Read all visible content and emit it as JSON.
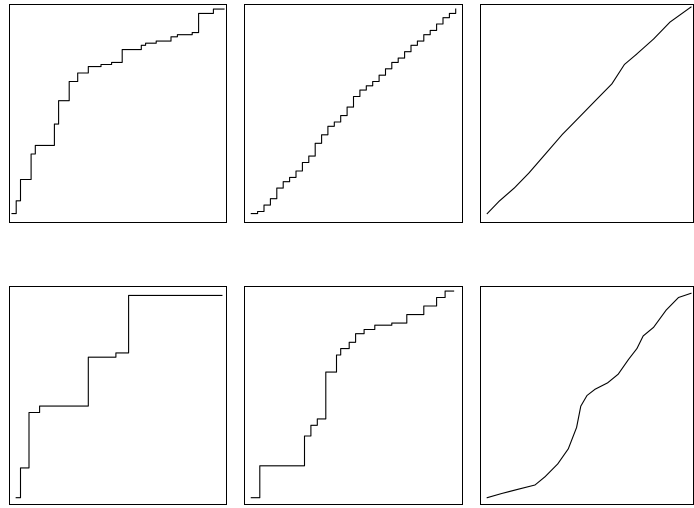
{
  "chart_data": [
    {
      "type": "line",
      "step": true,
      "axes_visible": false,
      "grid": false,
      "xlim": [
        0,
        1
      ],
      "ylim": [
        0,
        1
      ],
      "x": [
        0.0,
        0.02,
        0.02,
        0.04,
        0.04,
        0.09,
        0.09,
        0.11,
        0.11,
        0.2,
        0.2,
        0.22,
        0.22,
        0.27,
        0.27,
        0.31,
        0.31,
        0.36,
        0.36,
        0.42,
        0.42,
        0.47,
        0.47,
        0.51,
        0.51,
        0.52,
        0.52,
        0.55,
        0.55,
        0.61,
        0.61,
        0.63,
        0.63,
        0.68,
        0.68,
        0.75,
        0.75,
        0.78,
        0.78,
        0.85,
        0.85,
        0.88,
        0.88,
        0.95,
        0.95,
        1.0
      ],
      "y": [
        0.03,
        0.03,
        0.09,
        0.09,
        0.19,
        0.19,
        0.31,
        0.31,
        0.35,
        0.35,
        0.45,
        0.45,
        0.56,
        0.56,
        0.65,
        0.65,
        0.69,
        0.69,
        0.72,
        0.72,
        0.73,
        0.73,
        0.74,
        0.74,
        0.74,
        0.74,
        0.8,
        0.8,
        0.8,
        0.8,
        0.82,
        0.82,
        0.83,
        0.83,
        0.84,
        0.84,
        0.86,
        0.86,
        0.87,
        0.87,
        0.88,
        0.88,
        0.97,
        0.97,
        0.99,
        0.99
      ]
    },
    {
      "type": "line",
      "step": true,
      "axes_visible": false,
      "grid": false,
      "xlim": [
        0,
        1
      ],
      "ylim": [
        0,
        1
      ],
      "x": [
        0.02,
        0.05,
        0.08,
        0.11,
        0.14,
        0.17,
        0.2,
        0.23,
        0.26,
        0.29,
        0.32,
        0.35,
        0.38,
        0.41,
        0.44,
        0.47,
        0.5,
        0.53,
        0.56,
        0.59,
        0.62,
        0.65,
        0.68,
        0.71,
        0.74,
        0.77,
        0.8,
        0.83,
        0.86,
        0.89,
        0.92,
        0.95,
        0.98
      ],
      "y": [
        0.03,
        0.04,
        0.07,
        0.1,
        0.15,
        0.18,
        0.2,
        0.23,
        0.27,
        0.3,
        0.36,
        0.4,
        0.44,
        0.46,
        0.49,
        0.53,
        0.58,
        0.61,
        0.63,
        0.65,
        0.68,
        0.71,
        0.74,
        0.76,
        0.79,
        0.82,
        0.84,
        0.87,
        0.89,
        0.92,
        0.95,
        0.97,
        0.99
      ]
    },
    {
      "type": "line",
      "step": false,
      "axes_visible": false,
      "grid": false,
      "xlim": [
        0,
        1
      ],
      "ylim": [
        0,
        1
      ],
      "x": [
        0.02,
        0.08,
        0.15,
        0.22,
        0.3,
        0.38,
        0.46,
        0.54,
        0.62,
        0.68,
        0.74,
        0.82,
        0.9,
        1.0
      ],
      "y": [
        0.03,
        0.09,
        0.15,
        0.22,
        0.31,
        0.4,
        0.48,
        0.56,
        0.64,
        0.73,
        0.78,
        0.85,
        0.93,
        1.0
      ]
    },
    {
      "type": "line",
      "step": true,
      "axes_visible": false,
      "grid": false,
      "xlim": [
        0,
        1
      ],
      "ylim": [
        0,
        1
      ],
      "x": [
        0.02,
        0.04,
        0.04,
        0.08,
        0.08,
        0.13,
        0.13,
        0.36,
        0.36,
        0.49,
        0.49,
        0.55,
        0.55,
        0.99
      ],
      "y": [
        0.02,
        0.02,
        0.16,
        0.16,
        0.42,
        0.42,
        0.45,
        0.45,
        0.68,
        0.68,
        0.7,
        0.7,
        0.97,
        0.97
      ]
    },
    {
      "type": "line",
      "step": true,
      "axes_visible": false,
      "grid": false,
      "xlim": [
        0,
        1
      ],
      "ylim": [
        0,
        1
      ],
      "x": [
        0.02,
        0.06,
        0.06,
        0.27,
        0.27,
        0.3,
        0.3,
        0.33,
        0.33,
        0.37,
        0.37,
        0.42,
        0.42,
        0.44,
        0.44,
        0.48,
        0.48,
        0.51,
        0.51,
        0.55,
        0.55,
        0.6,
        0.6,
        0.68,
        0.68,
        0.75,
        0.75,
        0.83,
        0.83,
        0.89,
        0.89,
        0.93,
        0.93,
        0.97
      ],
      "y": [
        0.02,
        0.02,
        0.17,
        0.17,
        0.31,
        0.31,
        0.36,
        0.36,
        0.39,
        0.39,
        0.61,
        0.61,
        0.69,
        0.69,
        0.72,
        0.72,
        0.75,
        0.75,
        0.79,
        0.79,
        0.81,
        0.81,
        0.83,
        0.83,
        0.84,
        0.84,
        0.88,
        0.88,
        0.92,
        0.92,
        0.96,
        0.96,
        0.99,
        0.99
      ]
    },
    {
      "type": "line",
      "step": false,
      "axes_visible": false,
      "grid": false,
      "xlim": [
        0,
        1
      ],
      "ylim": [
        0,
        1
      ],
      "x": [
        0.02,
        0.09,
        0.17,
        0.25,
        0.3,
        0.36,
        0.41,
        0.45,
        0.47,
        0.5,
        0.54,
        0.6,
        0.65,
        0.7,
        0.74,
        0.77,
        0.82,
        0.88,
        0.94,
        1.0
      ],
      "y": [
        0.02,
        0.04,
        0.06,
        0.08,
        0.12,
        0.18,
        0.25,
        0.35,
        0.45,
        0.5,
        0.53,
        0.56,
        0.6,
        0.67,
        0.72,
        0.78,
        0.82,
        0.9,
        0.96,
        0.98
      ]
    }
  ]
}
